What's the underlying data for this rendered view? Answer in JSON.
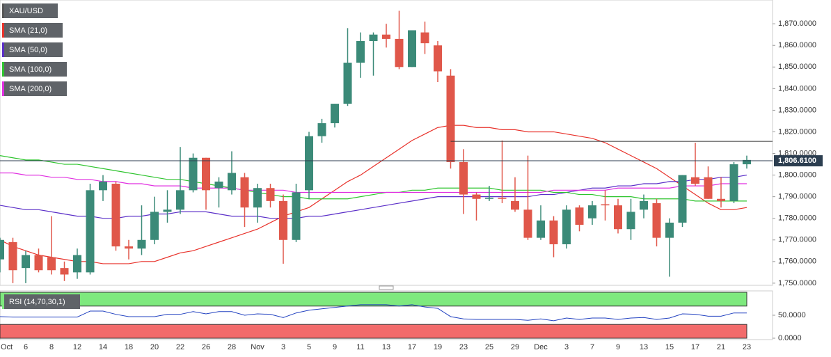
{
  "chart_data": [
    {
      "type": "candlestick",
      "name": "XAU/USD",
      "categories": [
        "Oct",
        null,
        "6",
        null,
        "8",
        null,
        "12",
        null,
        "14",
        null,
        "18",
        null,
        "20",
        null,
        "22",
        null,
        "26",
        null,
        "28",
        null,
        "Nov",
        null,
        "3",
        null,
        "5",
        null,
        "9",
        null,
        "11",
        null,
        "13",
        null,
        "17",
        null,
        "19",
        null,
        "23",
        null,
        "25",
        null,
        "29",
        null,
        "Dec",
        null,
        "3",
        null,
        "7",
        null,
        "9",
        null,
        "13",
        null,
        "15",
        null,
        "17",
        null,
        "21",
        null,
        "23"
      ],
      "open": [
        1761,
        1769,
        1757,
        1763,
        1762,
        1757,
        1755,
        1755,
        1793,
        1796,
        1767,
        1766,
        1770,
        1783,
        1784,
        1793,
        1808,
        1794,
        1793,
        1799,
        1785,
        1794,
        1788,
        1770,
        1793,
        1818,
        1824,
        1833,
        1852,
        1862,
        1865,
        1863,
        1850,
        1866,
        1860,
        1846,
        1806,
        1791,
        1789,
        1789.5,
        1788,
        1784,
        1771,
        1779,
        1768,
        1785,
        1780,
        1786.5,
        1786,
        1775,
        1784,
        1787,
        1771,
        1778,
        1799,
        1799,
        1789,
        1788,
        1805
      ],
      "high": [
        1771,
        1771,
        1765,
        1766,
        1781,
        1760,
        1766,
        1796,
        1800,
        1797,
        1770,
        1786,
        1790,
        1793,
        1813,
        1810,
        1808,
        1799,
        1811,
        1801,
        1796,
        1796,
        1791,
        1796,
        1820,
        1826,
        1833,
        1868,
        1866,
        1866,
        1870,
        1876,
        1867,
        1871,
        1862,
        1849,
        1812,
        1792,
        1795,
        1816,
        1799,
        1809,
        1786,
        1781,
        1786,
        1786,
        1788,
        1793,
        1789,
        1789,
        1791,
        1789,
        1780,
        1800,
        1815,
        1804,
        1799,
        1806,
        1809
      ],
      "low": [
        1755,
        1750,
        1750,
        1755,
        1754,
        1751,
        1752,
        1754,
        1788,
        1765,
        1761,
        1763,
        1768,
        1778,
        1782,
        1792,
        1784,
        1785,
        1791,
        1776,
        1778,
        1785,
        1759,
        1769,
        1789,
        1815,
        1822,
        1832,
        1845,
        1846,
        1859,
        1849,
        1850,
        1856,
        1843,
        1803,
        1782,
        1779,
        1788,
        1787,
        1783,
        1770,
        1770,
        1762,
        1766,
        1774,
        1777,
        1779,
        1773,
        1770,
        1780,
        1767,
        1753,
        1776,
        1795,
        1789,
        1785,
        1787,
        1803
      ],
      "close": [
        1770,
        1756,
        1763,
        1756,
        1756,
        1754,
        1763,
        1793,
        1797,
        1767,
        1766,
        1770,
        1783,
        1784,
        1793,
        1808,
        1793,
        1797,
        1801,
        1785,
        1794,
        1788,
        1770,
        1792,
        1818,
        1824,
        1833,
        1852,
        1862,
        1865,
        1863,
        1850,
        1867,
        1861,
        1848,
        1806,
        1791,
        1789,
        1789.5,
        1789,
        1784,
        1771,
        1779,
        1768,
        1784,
        1777,
        1786,
        1786,
        1775,
        1783,
        1788,
        1771,
        1778,
        1800,
        1796,
        1789,
        1788,
        1805,
        1807
      ],
      "up_color": "#3b8a78",
      "down_color": "#e0574a",
      "series": [
        {
          "name": "SMA (21,0)",
          "color": "#e8312a",
          "values": [
            1770,
            1767,
            1765,
            1763,
            1762,
            1761,
            1760,
            1760,
            1759,
            1759,
            1759,
            1760,
            1760,
            1762,
            1764,
            1765,
            1767,
            1769,
            1771,
            1773,
            1775,
            1778,
            1781,
            1783,
            1785,
            1789,
            1793,
            1797,
            1800,
            1804,
            1808,
            1812,
            1816,
            1819,
            1822,
            1823,
            1823,
            1822,
            1822,
            1821,
            1821,
            1820,
            1820,
            1820,
            1819,
            1818,
            1817,
            1815,
            1812,
            1809,
            1806,
            1803,
            1799,
            1795,
            1791,
            1787,
            1784,
            1784,
            1785
          ]
        },
        {
          "name": "SMA (50,0)",
          "color": "#5a2ec8",
          "values": [
            1786,
            1785,
            1784,
            1784,
            1783,
            1782,
            1781,
            1781,
            1780,
            1780,
            1781,
            1781,
            1782,
            1782,
            1783,
            1783,
            1783,
            1782,
            1781,
            1781,
            1781,
            1780,
            1780,
            1780,
            1781,
            1781,
            1782,
            1783,
            1784,
            1785,
            1786,
            1787,
            1788,
            1789,
            1790,
            1790,
            1790,
            1790,
            1790,
            1790,
            1790,
            1790,
            1791,
            1791,
            1792,
            1793,
            1794,
            1794,
            1795,
            1795,
            1796,
            1796,
            1797,
            1797,
            1798,
            1798,
            1799,
            1799,
            1800
          ]
        },
        {
          "name": "SMA (100,0)",
          "color": "#2ec42e",
          "values": [
            1809,
            1808,
            1807,
            1807,
            1806,
            1805,
            1805,
            1804,
            1803,
            1802,
            1801,
            1800,
            1799,
            1798,
            1798,
            1797,
            1796,
            1795,
            1794,
            1793,
            1792,
            1791,
            1790,
            1790,
            1789,
            1789,
            1789,
            1789,
            1790,
            1791,
            1792,
            1792,
            1793,
            1793,
            1794,
            1794,
            1794,
            1794,
            1794,
            1793,
            1793,
            1793,
            1793,
            1792,
            1792,
            1791,
            1791,
            1790,
            1790,
            1790,
            1789,
            1789,
            1789,
            1789,
            1788,
            1788,
            1788,
            1788,
            1788
          ]
        },
        {
          "name": "SMA (200,0)",
          "color": "#e02ee0",
          "values": [
            1801,
            1801,
            1800,
            1800,
            1799,
            1799,
            1798,
            1798,
            1797,
            1797,
            1796,
            1796,
            1795,
            1795,
            1795,
            1794,
            1794,
            1794,
            1794,
            1793,
            1793,
            1793,
            1793,
            1792,
            1792,
            1792,
            1792,
            1792,
            1792,
            1792,
            1792,
            1792,
            1792,
            1792,
            1792,
            1792,
            1792,
            1792,
            1792,
            1792,
            1792,
            1792,
            1792,
            1793,
            1793,
            1793,
            1793,
            1793,
            1794,
            1794,
            1794,
            1794,
            1794,
            1795,
            1795,
            1795,
            1796,
            1796,
            1796
          ]
        }
      ],
      "last_price": {
        "value": 1806.61,
        "label": "1,806.6100"
      },
      "hline": 1815.6,
      "ylim": [
        1749,
        1881
      ],
      "yticks": [
        {
          "value": 1750,
          "label": "1,750.0000"
        },
        {
          "value": 1760,
          "label": "1,760.0000"
        },
        {
          "value": 1770,
          "label": "1,770.0000"
        },
        {
          "value": 1780,
          "label": "1,780.0000"
        },
        {
          "value": 1790,
          "label": "1,790.0000"
        },
        {
          "value": 1800,
          "label": "1,800.0000"
        },
        {
          "value": 1810,
          "label": "1,810.0000"
        },
        {
          "value": 1820,
          "label": "1,820.0000"
        },
        {
          "value": 1830,
          "label": "1,830.0000"
        },
        {
          "value": 1840,
          "label": "1,840.0000"
        },
        {
          "value": 1850,
          "label": "1,850.0000"
        },
        {
          "value": 1860,
          "label": "1,860.0000"
        },
        {
          "value": 1870,
          "label": "1,870.0000"
        }
      ]
    },
    {
      "type": "line",
      "name": "RSI (14,70,30,1)",
      "color": "#2040c0",
      "values": [
        47,
        46,
        46,
        46,
        46,
        46,
        46,
        59,
        59,
        52,
        47,
        47,
        47,
        52,
        52,
        58,
        53,
        58,
        58,
        50,
        53,
        52,
        45,
        55,
        61,
        64,
        67,
        70,
        73,
        73,
        73,
        70,
        73,
        68,
        65,
        47,
        42,
        41,
        41,
        41,
        41,
        39,
        42,
        38,
        44,
        41,
        44,
        44,
        41,
        44,
        45,
        41,
        44,
        53,
        52,
        48,
        48,
        55,
        55
      ],
      "upper_band": 70,
      "lower_band": 30,
      "upper_color": "#7ee97e",
      "lower_color": "#f26b6b",
      "ylim": [
        0,
        100
      ],
      "yticks": [
        {
          "value": 50,
          "label": "50.0000"
        },
        {
          "value": 0,
          "label": "0.0000"
        }
      ]
    }
  ]
}
